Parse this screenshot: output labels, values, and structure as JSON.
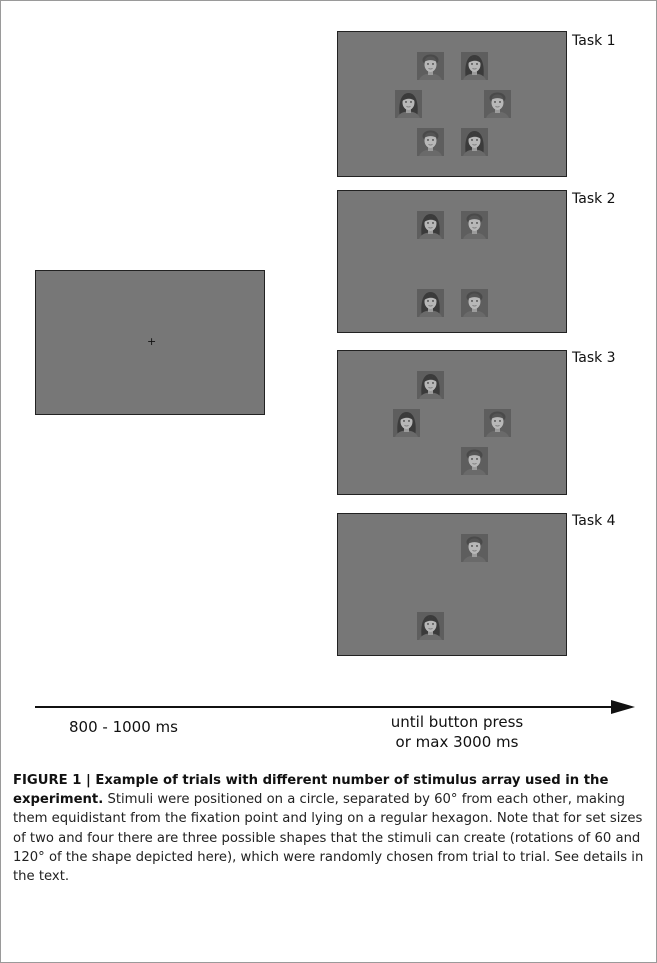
{
  "figure": {
    "fixation_symbol": "+",
    "tasks": [
      {
        "label": "Task 1",
        "faces": [
          [
            "m",
            "f"
          ],
          [
            "f",
            "m"
          ],
          [
            "m",
            "f"
          ]
        ]
      },
      {
        "label": "Task 2",
        "faces": [
          [
            "f",
            "m"
          ],
          [
            "f",
            "m"
          ]
        ]
      },
      {
        "label": "Task 3",
        "faces": [
          "f",
          "f",
          "m",
          "m"
        ]
      },
      {
        "label": "Task 4",
        "faces": [
          "m",
          "f"
        ]
      }
    ],
    "timeline": {
      "fixation_duration": "800 - 1000 ms",
      "response_line1": "until button press",
      "response_line2": "or max 3000 ms"
    }
  },
  "caption": {
    "heading": "FIGURE 1 | Example of trials with different number of stimulus array used in the experiment.",
    "body": " Stimuli were positioned on a circle, separated by 60° from each other, making them equidistant from the fixation point and lying on a regular hexagon. Note that for set sizes of two and four there are three possible shapes that the stimuli can create (rotations of 60 and 120° of the shape depicted here), which were randomly chosen from trial to trial. See details in the text."
  }
}
